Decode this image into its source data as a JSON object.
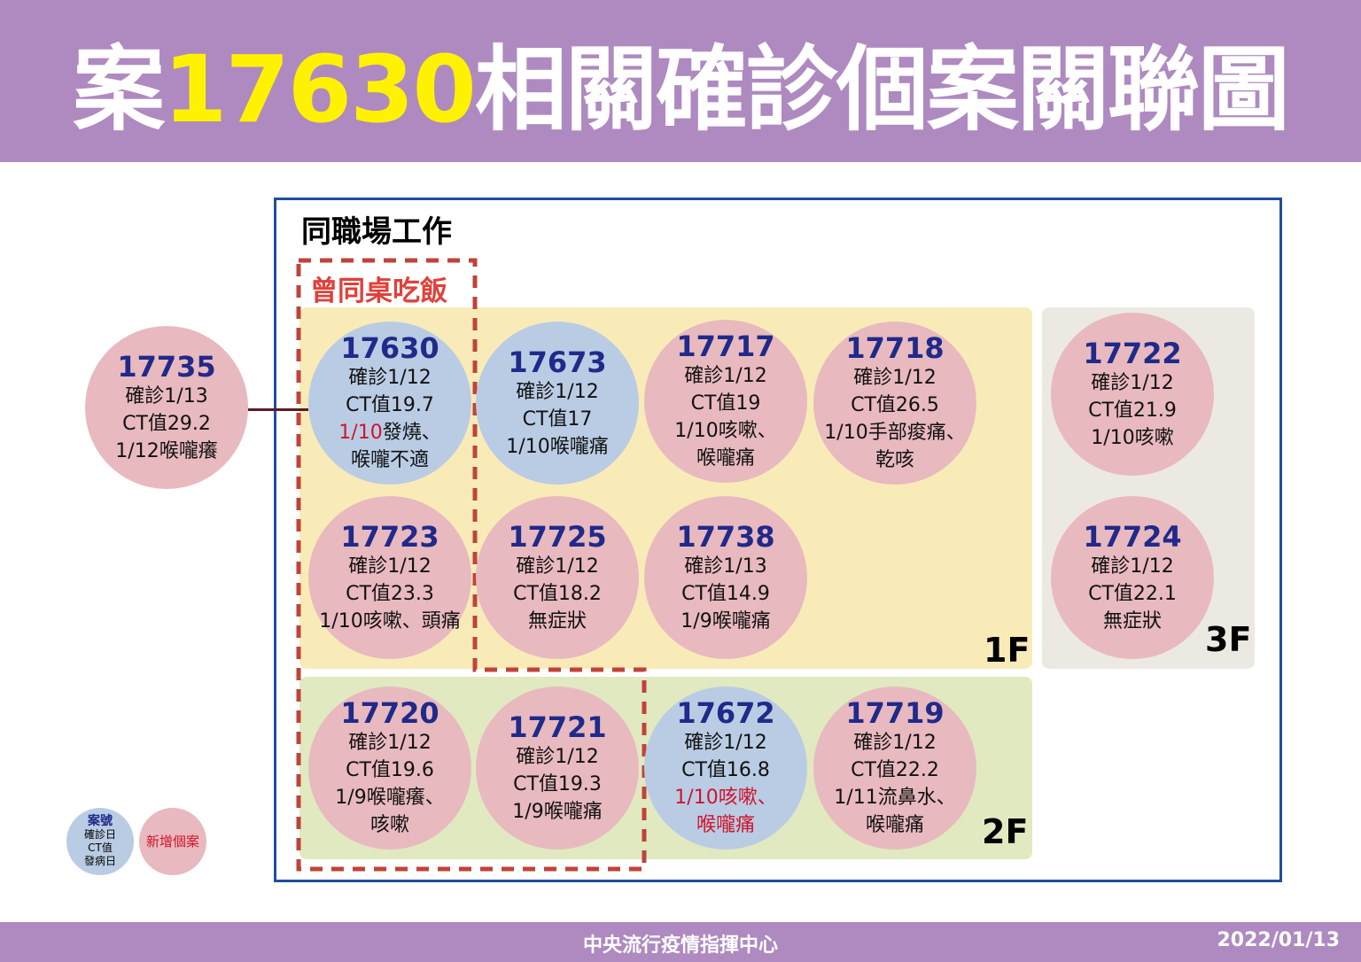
{
  "title": {
    "prefix": "案",
    "number": "17630",
    "suffix": "相關確診個案關聯圖"
  },
  "labels": {
    "workplace": "同職場工作",
    "same_table": "曾同桌吃飯",
    "floor_1": "1F",
    "floor_2": "2F",
    "floor_3": "3F"
  },
  "colors": {
    "existing_case": "#b9cce4",
    "new_case": "#e8b9bf",
    "title_bar": "#ae8ac0",
    "highlight": "#fff200",
    "case_number": "#1f2a8a"
  },
  "cases": [
    {
      "id": "17735",
      "type": "new",
      "lines": [
        {
          "text": "確診1/13"
        },
        {
          "text": "CT值29.2"
        },
        {
          "text": "1/12喉嚨癢"
        }
      ]
    },
    {
      "id": "17630",
      "type": "existing",
      "lines": [
        {
          "text": "確診1/12"
        },
        {
          "text": "CT值19.7"
        },
        {
          "red": "1/10",
          "text": "發燒、"
        },
        {
          "text": "喉嚨不適"
        }
      ]
    },
    {
      "id": "17673",
      "type": "existing",
      "lines": [
        {
          "text": "確診1/12"
        },
        {
          "text": "CT值17"
        },
        {
          "text": "1/10喉嚨痛"
        }
      ]
    },
    {
      "id": "17717",
      "type": "new",
      "lines": [
        {
          "text": "確診1/12"
        },
        {
          "text": "CT值19"
        },
        {
          "text": "1/10咳嗽、"
        },
        {
          "text": "喉嚨痛"
        }
      ]
    },
    {
      "id": "17718",
      "type": "new",
      "lines": [
        {
          "text": "確診1/12"
        },
        {
          "text": "CT值26.5"
        },
        {
          "text": "1/10手部痠痛、"
        },
        {
          "text": "乾咳"
        }
      ]
    },
    {
      "id": "17723",
      "type": "new",
      "lines": [
        {
          "text": "確診1/12"
        },
        {
          "text": "CT值23.3"
        },
        {
          "text": "1/10咳嗽、頭痛"
        }
      ]
    },
    {
      "id": "17725",
      "type": "new",
      "lines": [
        {
          "text": "確診1/12"
        },
        {
          "text": "CT值18.2"
        },
        {
          "text": "無症狀"
        }
      ]
    },
    {
      "id": "17738",
      "type": "new",
      "lines": [
        {
          "text": "確診1/13"
        },
        {
          "text": "CT值14.9"
        },
        {
          "text": "1/9喉嚨痛"
        }
      ]
    },
    {
      "id": "17722",
      "type": "new",
      "lines": [
        {
          "text": "確診1/12"
        },
        {
          "text": "CT值21.9"
        },
        {
          "text": "1/10咳嗽"
        }
      ]
    },
    {
      "id": "17724",
      "type": "new",
      "lines": [
        {
          "text": "確診1/12"
        },
        {
          "text": "CT值22.1"
        },
        {
          "text": "無症狀"
        }
      ]
    },
    {
      "id": "17720",
      "type": "new",
      "lines": [
        {
          "text": "確診1/12"
        },
        {
          "text": "CT值19.6"
        },
        {
          "text": "1/9喉嚨癢、"
        },
        {
          "text": "咳嗽"
        }
      ]
    },
    {
      "id": "17721",
      "type": "new",
      "lines": [
        {
          "text": "確診1/12"
        },
        {
          "text": "CT值19.3"
        },
        {
          "text": "1/9喉嚨痛"
        }
      ]
    },
    {
      "id": "17672",
      "type": "existing",
      "lines": [
        {
          "text": "確診1/12"
        },
        {
          "text": "CT值16.8"
        },
        {
          "red": "1/10咳嗽、"
        },
        {
          "red": "喉嚨痛"
        }
      ]
    },
    {
      "id": "17719",
      "type": "new",
      "lines": [
        {
          "text": "確診1/12"
        },
        {
          "text": "CT值22.2"
        },
        {
          "text": "1/11流鼻水、"
        },
        {
          "text": "喉嚨痛"
        }
      ]
    }
  ],
  "legend": {
    "existing": [
      "案號",
      "確診日",
      "CT值",
      "發病日"
    ],
    "new": "新增個案"
  },
  "footer": {
    "org": "中央流行疫情指揮中心",
    "date": "2022/01/13"
  }
}
